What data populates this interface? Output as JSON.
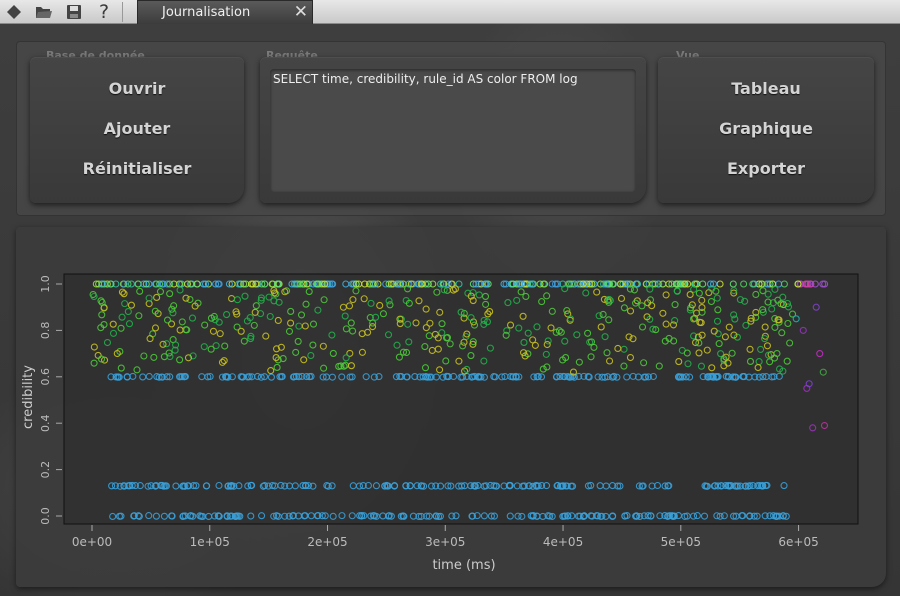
{
  "toolbar": {
    "icons": [
      "diamond-icon",
      "folder-open-icon",
      "save-icon",
      "help-icon"
    ],
    "help_glyph": "?"
  },
  "tab": {
    "title": "Journalisation",
    "close_glyph": "✕"
  },
  "database": {
    "label": "Base de donnée",
    "buttons": [
      "Ouvrir",
      "Ajouter",
      "Réinitialiser"
    ]
  },
  "query": {
    "label": "Requête",
    "value": "SELECT time, credibility, rule_id AS color FROM log"
  },
  "view": {
    "label": "Vue",
    "buttons": [
      "Tableau",
      "Graphique",
      "Exporter"
    ]
  },
  "chart_data": {
    "type": "scatter",
    "xlabel": "time (ms)",
    "ylabel": "credibility",
    "xlim": [
      0,
      650000
    ],
    "ylim": [
      0,
      1.0
    ],
    "x_ticks": [
      0,
      100000,
      200000,
      300000,
      400000,
      500000,
      600000
    ],
    "x_tick_labels": [
      "0e+00",
      "1e+05",
      "2e+05",
      "3e+05",
      "4e+05",
      "5e+05",
      "6e+05"
    ],
    "y_ticks": [
      0.0,
      0.2,
      0.4,
      0.6,
      0.8,
      1.0
    ],
    "y_tick_labels": [
      "0.0",
      "0.2",
      "0.4",
      "0.6",
      "0.8",
      "1.0"
    ],
    "bands": [
      {
        "y": 1.0,
        "x_from": 0,
        "x_to": 625000,
        "color": "rainbow"
      },
      {
        "y": 0.6,
        "x_from": 15000,
        "x_to": 590000,
        "color": "#3aa0d8"
      },
      {
        "y": 0.13,
        "x_from": 15000,
        "x_to": 590000,
        "color": "#3aa0d8"
      },
      {
        "y": 0.0,
        "x_from": 15000,
        "x_to": 590000,
        "color": "#3aa0d8"
      }
    ],
    "scatter_region": {
      "x_from": 0,
      "x_to": 600000,
      "y_from": 0.62,
      "y_to": 0.98,
      "colors": [
        "#22b04a",
        "#c8c020",
        "#4cc83a"
      ]
    },
    "outliers": [
      {
        "x": 604000,
        "y": 0.8,
        "color": "#9a30c8"
      },
      {
        "x": 607000,
        "y": 0.55,
        "color": "#a030c0"
      },
      {
        "x": 612000,
        "y": 0.38,
        "color": "#a030c0"
      },
      {
        "x": 622000,
        "y": 0.39,
        "color": "#c030a0"
      },
      {
        "x": 615000,
        "y": 0.9,
        "color": "#8040d0"
      },
      {
        "x": 618000,
        "y": 0.7,
        "color": "#c030c0"
      },
      {
        "x": 621000,
        "y": 0.62,
        "color": "#40a840"
      },
      {
        "x": 598000,
        "y": 0.85,
        "color": "#20b0b0"
      },
      {
        "x": 609000,
        "y": 0.57,
        "color": "#8040d0"
      }
    ]
  }
}
